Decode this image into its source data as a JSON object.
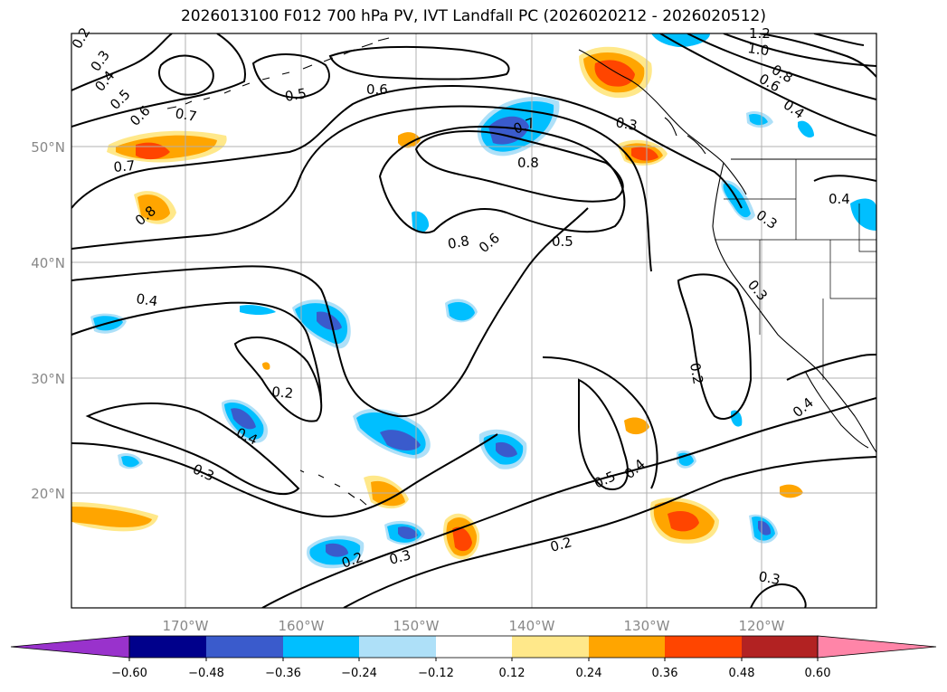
{
  "title": "2026013100 F012 700 hPa PV, IVT Landfall PC (2026020212 - 2026020512)",
  "lon_ticks": [
    "170°W",
    "160°W",
    "150°W",
    "140°W",
    "130°W",
    "120°W"
  ],
  "lat_ticks": [
    "50°N",
    "40°N",
    "30°N",
    "20°N"
  ],
  "contour_labels": [
    "0.2",
    "0.3",
    "0.4",
    "0.5",
    "0.6",
    "0.7",
    "0.8",
    "1.0",
    "1.2",
    "0.2",
    "0.3",
    "0.4",
    "0.5",
    "0.6",
    "0.7",
    "0.8",
    "0.2",
    "0.3",
    "0.4",
    "0.5",
    "0.6",
    "0.8",
    "0.3",
    "0.4",
    "0.7",
    "0.6",
    "0.8",
    "0.3",
    "0.4",
    "0.2",
    "0.3",
    "0.4",
    "0.5",
    "0.2",
    "0.3",
    "0.4"
  ],
  "colorbar": {
    "ticks": [
      "−0.60",
      "−0.48",
      "−0.36",
      "−0.24",
      "−0.12",
      "0.12",
      "0.24",
      "0.36",
      "0.48",
      "0.60"
    ],
    "colors": [
      "#9932cc",
      "#00008b",
      "#3a5bcc",
      "#00bfff",
      "#aee0f8",
      "#ffffff",
      "#ffe88a",
      "#ffa500",
      "#ff4500",
      "#b22222",
      "#ff85a8"
    ]
  },
  "fill_colors": {
    "light_blue": "#aee0f8",
    "blue": "#00bfff",
    "dark_blue": "#3a5bcc",
    "light_yellow": "#ffe88a",
    "orange": "#ffa500",
    "red_orange": "#ff4500"
  }
}
